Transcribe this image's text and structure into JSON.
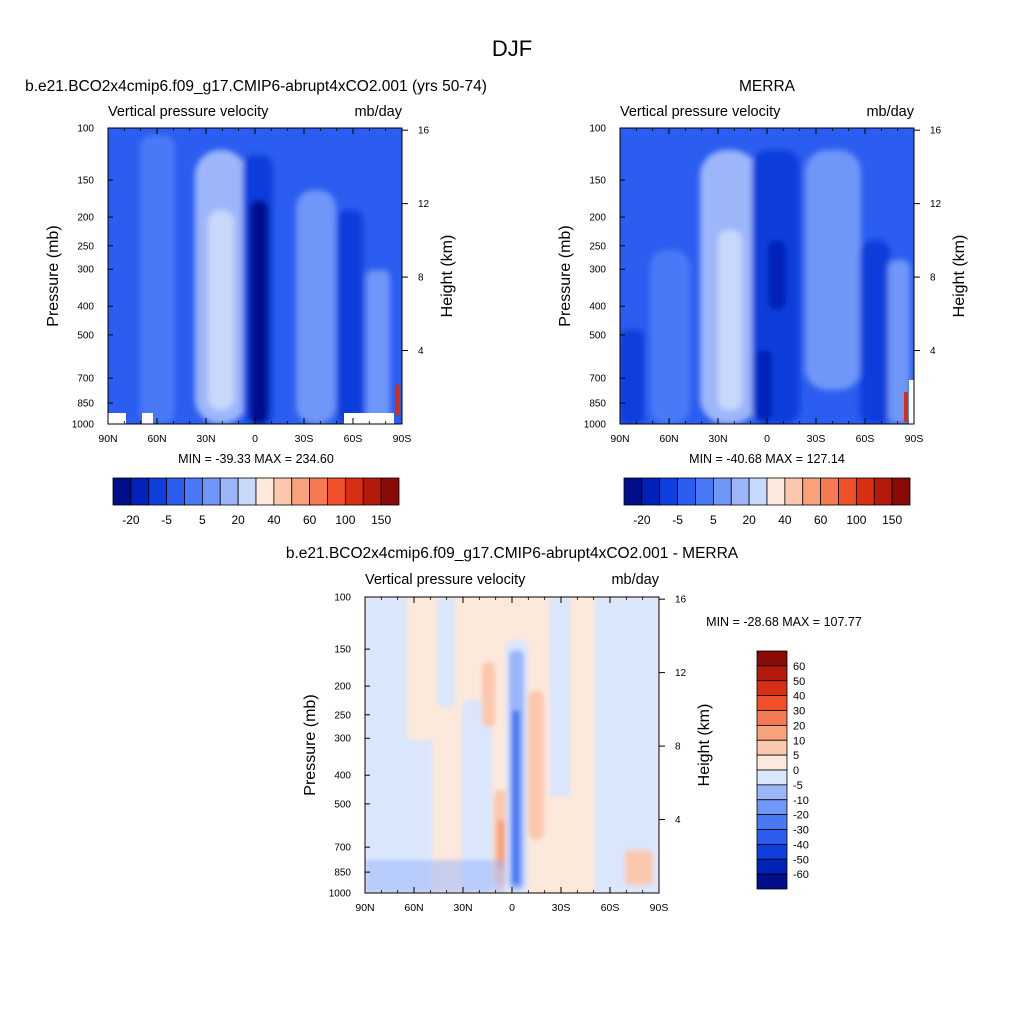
{
  "page": {
    "title": "DJF"
  },
  "colors": {
    "main_bar": [
      "#000e8c",
      "#0022b8",
      "#0e3edb",
      "#2b5df0",
      "#4979f7",
      "#7096f8",
      "#9cb6f9",
      "#c8d8fb",
      "#fde8dc",
      "#fbc8ad",
      "#f8a27c",
      "#f57a52",
      "#f0512a",
      "#d72e14",
      "#b31a0c",
      "#8a0a06"
    ],
    "diff_bar": [
      "#000e8c",
      "#0022b8",
      "#0e3edb",
      "#2b5df0",
      "#4979f7",
      "#7096f8",
      "#9cb6f9",
      "#d9e6fc",
      "#fde8dc",
      "#fbc8ad",
      "#f8a27c",
      "#f57a52",
      "#f0512a",
      "#d72e14",
      "#b31a0c",
      "#8a0a06"
    ]
  },
  "chart_data": [
    {
      "type": "heatmap",
      "title": "b.e21.BCO2x4cmip6.f09_g17.CMIP6-abrupt4xCO2.001 (yrs 50-74)",
      "left_string": "Vertical pressure velocity",
      "right_string": "mb/day",
      "ylabel": "Pressure (mb)",
      "ylabel_right": "Height (km)",
      "x_ticks": [
        "90N",
        "60N",
        "30N",
        "0",
        "30S",
        "60S",
        "90S"
      ],
      "y_ticks": [
        "100",
        "150",
        "200",
        "250",
        "300",
        "400",
        "500",
        "700",
        "850",
        "1000"
      ],
      "y_right_ticks": [
        "16",
        "12",
        "8",
        "4"
      ],
      "stats": "MIN = -39.33  MAX = 234.60",
      "colorbar_labels": [
        "-20",
        "-5",
        "5",
        "20",
        "40",
        "60",
        "100",
        "150"
      ]
    },
    {
      "type": "heatmap",
      "title": "MERRA",
      "left_string": "Vertical pressure velocity",
      "right_string": "mb/day",
      "ylabel": "Pressure (mb)",
      "ylabel_right": "Height (km)",
      "x_ticks": [
        "90N",
        "60N",
        "30N",
        "0",
        "30S",
        "60S",
        "90S"
      ],
      "y_ticks": [
        "100",
        "150",
        "200",
        "250",
        "300",
        "400",
        "500",
        "700",
        "850",
        "1000"
      ],
      "y_right_ticks": [
        "16",
        "12",
        "8",
        "4"
      ],
      "stats": "MIN = -40.68  MAX = 127.14",
      "colorbar_labels": [
        "-20",
        "-5",
        "5",
        "20",
        "40",
        "60",
        "100",
        "150"
      ]
    },
    {
      "type": "heatmap",
      "title": "b.e21.BCO2x4cmip6.f09_g17.CMIP6-abrupt4xCO2.001 - MERRA",
      "left_string": "Vertical pressure velocity",
      "right_string": "mb/day",
      "ylabel": "Pressure (mb)",
      "ylabel_right": "Height (km)",
      "x_ticks": [
        "90N",
        "60N",
        "30N",
        "0",
        "30S",
        "60S",
        "90S"
      ],
      "y_ticks": [
        "100",
        "150",
        "200",
        "250",
        "300",
        "400",
        "500",
        "700",
        "850",
        "1000"
      ],
      "y_right_ticks": [
        "16",
        "12",
        "8",
        "4"
      ],
      "stats": "MIN = -28.68  MAX = 107.77",
      "colorbar_labels": [
        "60",
        "50",
        "40",
        "30",
        "20",
        "10",
        "5",
        "0",
        "-5",
        "-10",
        "-20",
        "-30",
        "-40",
        "-50",
        "-60"
      ]
    }
  ]
}
